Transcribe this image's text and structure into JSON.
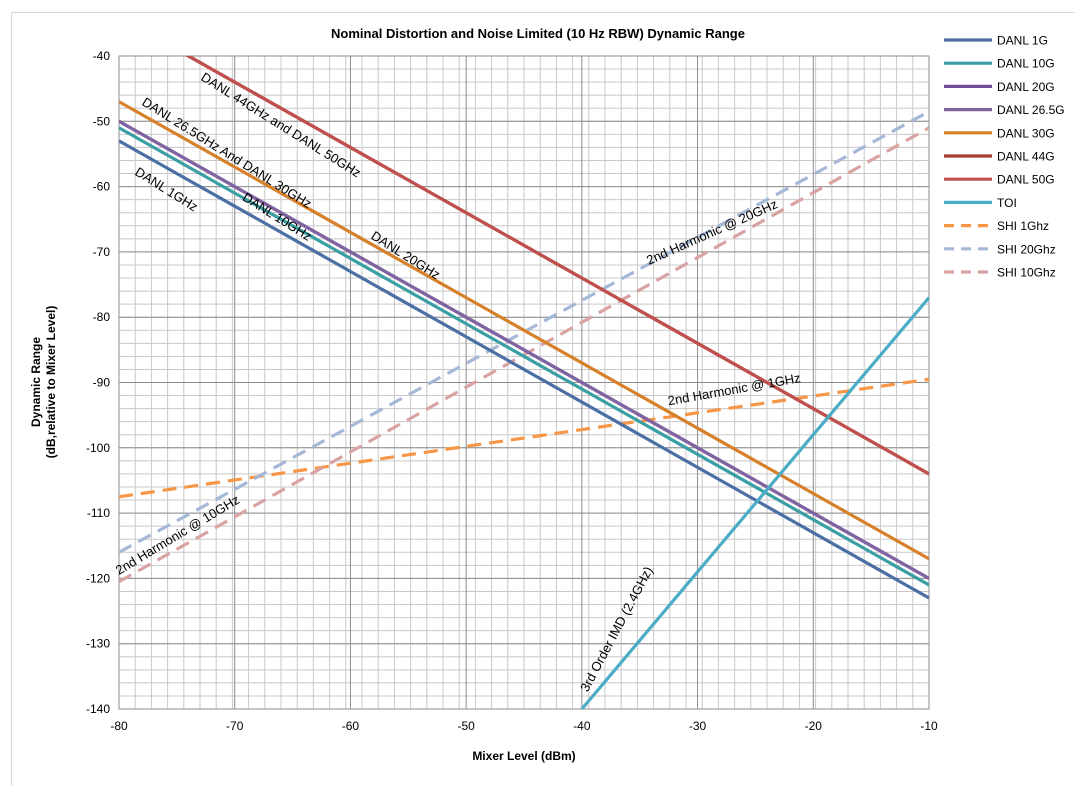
{
  "chart_data": {
    "type": "line",
    "title": "Nominal Distortion and Noise Limited (10 Hz RBW) Dynamic Range",
    "xlabel": "Mixer Level (dBm)",
    "ylabel_line1": "Dynamic Range",
    "ylabel_line2": "(dB,relative to Mixer Level)",
    "xlim": [
      -80,
      -10
    ],
    "ylim": [
      -140,
      -40
    ],
    "x_ticks": [
      -80,
      -70,
      -60,
      -50,
      -40,
      -30,
      -20,
      -10
    ],
    "y_ticks": [
      -40,
      -50,
      -60,
      -70,
      -80,
      -90,
      -100,
      -110,
      -120,
      -130,
      -140
    ],
    "x_tick_labels": [
      "-80",
      "-70",
      "-60",
      "-50",
      "-40",
      "-30",
      "-20",
      "-10"
    ],
    "y_tick_labels": [
      "-40",
      "-50",
      "-60",
      "-70",
      "-80",
      "-90",
      "-100",
      "-110",
      "-120",
      "-130",
      "-140"
    ],
    "grid": true,
    "grid_minor_x_step": 1.4,
    "grid_minor_y_step": 2,
    "legend_position": "right",
    "series": [
      {
        "name": "DANL 1G",
        "color": "#4a6fa5",
        "dash": false,
        "x": [
          -80,
          -10
        ],
        "y": [
          -53,
          -123
        ]
      },
      {
        "name": "DANL 10G",
        "color": "#3a9ea5",
        "dash": false,
        "x": [
          -80,
          -10
        ],
        "y": [
          -51,
          -121
        ]
      },
      {
        "name": "DANL 20G",
        "color": "#6e4f9a",
        "dash": false,
        "x": [
          -80,
          -10
        ],
        "y": [
          -50,
          -120
        ]
      },
      {
        "name": "DANL 26.5G",
        "color": "#8064a2",
        "dash": false,
        "x": [
          -80,
          -10
        ],
        "y": [
          -50,
          -120
        ]
      },
      {
        "name": "DANL 30G",
        "color": "#d6802a",
        "dash": false,
        "x": [
          -80,
          -10
        ],
        "y": [
          -47,
          -117
        ]
      },
      {
        "name": "DANL 44G",
        "color": "#a83a32",
        "dash": false,
        "x": [
          -80,
          -10
        ],
        "y": [
          -34,
          -104
        ]
      },
      {
        "name": "DANL 50G",
        "color": "#c0504d",
        "dash": false,
        "x": [
          -80,
          -10
        ],
        "y": [
          -34,
          -104
        ]
      },
      {
        "name": "TOI",
        "color": "#4bacc6",
        "dash": false,
        "x": [
          -40,
          -10
        ],
        "y": [
          -140,
          -77
        ]
      },
      {
        "name": "SHI 1Ghz",
        "color": "#f79646",
        "dash": true,
        "x": [
          -80,
          -10
        ],
        "y": [
          -107.5,
          -89.5
        ]
      },
      {
        "name": "SHI 20Ghz",
        "color": "#a5b8d8",
        "dash": true,
        "x": [
          -80,
          -10
        ],
        "y": [
          -116,
          -48.5
        ]
      },
      {
        "name": "SHI 10Ghz",
        "color": "#d9a3a3",
        "dash": true,
        "x": [
          -80,
          -10
        ],
        "y": [
          -120.5,
          -51
        ]
      }
    ],
    "annotations": [
      {
        "text": "DANL 44GHz and DANL 50GHz",
        "x": -73,
        "y": -43.6,
        "angle": 32
      },
      {
        "text": "DANL 26.5GHz And DANL 30GHz",
        "x": -78.1,
        "y": -47.4,
        "angle": 32
      },
      {
        "text": "DANL 1GHz",
        "x": -78.7,
        "y": -58.1,
        "angle": 32
      },
      {
        "text": "DANL 10GHz",
        "x": -69.4,
        "y": -62,
        "angle": 32
      },
      {
        "text": "DANL 20GHz",
        "x": -58.3,
        "y": -67.9,
        "angle": 32
      },
      {
        "text": "2nd Harmonic @ 20GHz",
        "x": -34.2,
        "y": -72,
        "angle": -24
      },
      {
        "text": "2nd Harmonic @ 1GHz",
        "x": -32.5,
        "y": -93.5,
        "angle": -10
      },
      {
        "text": "2nd Harmonic @ 10GHz",
        "x": -80,
        "y": -119.5,
        "angle": -31
      },
      {
        "text": "3rd Order IMD (2.4GHz)",
        "x": -39.5,
        "y": -137.5,
        "angle": -62
      }
    ]
  }
}
